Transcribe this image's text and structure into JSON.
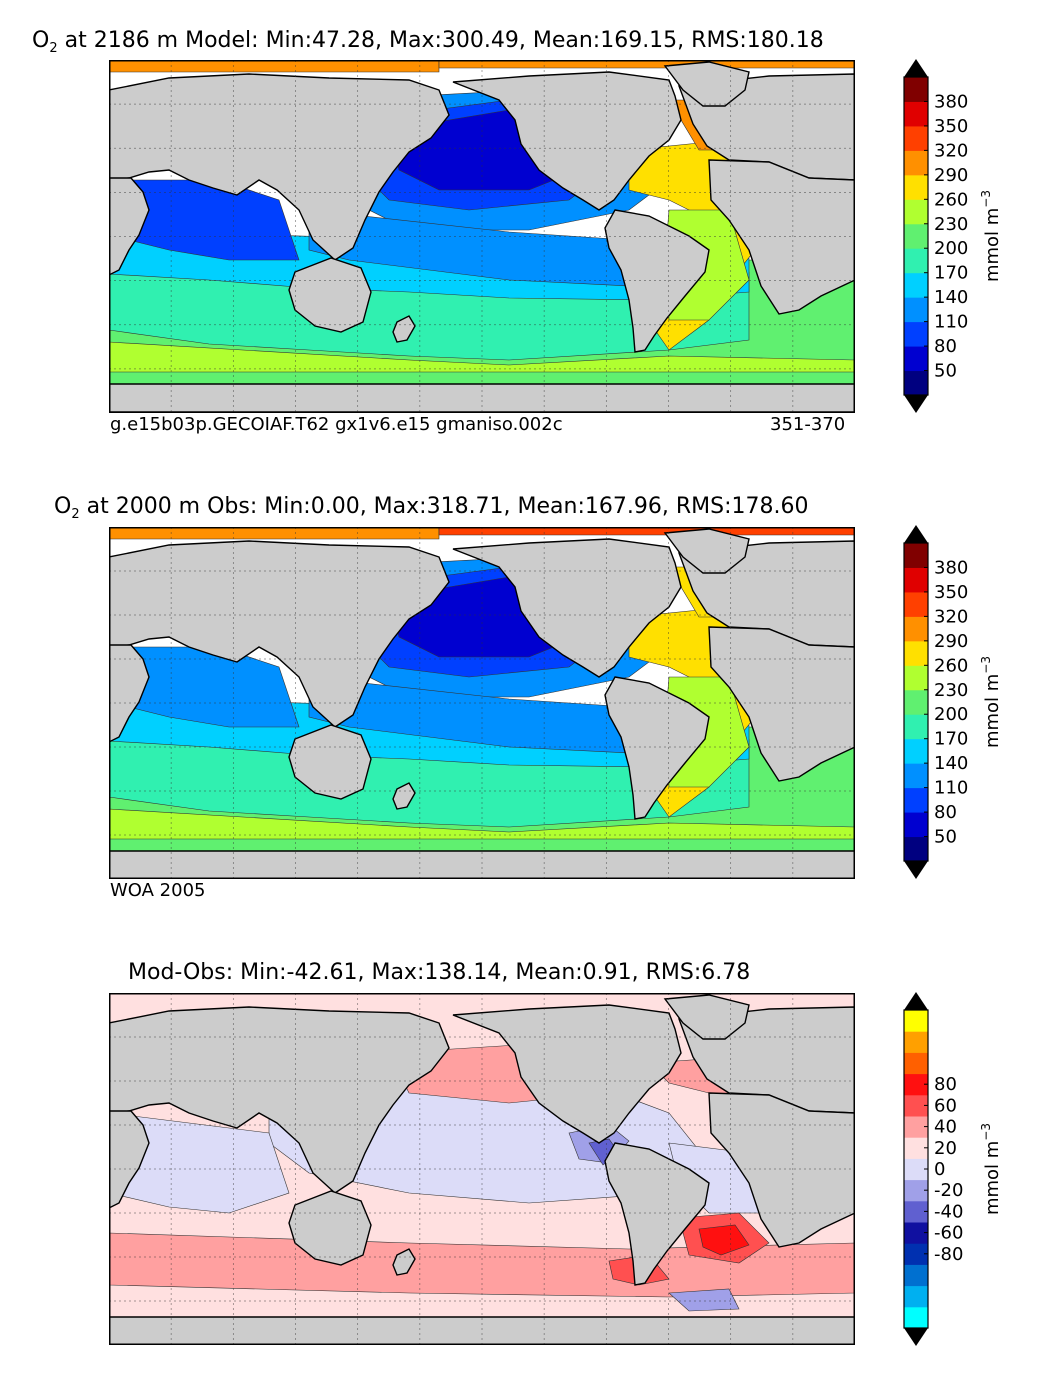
{
  "chart_data": [
    {
      "type": "heatmap",
      "title_prefix": "O",
      "title_sub": "2",
      "title_rest": " at 2186 m Model: Min:47.28, Max:300.49, Mean:169.15, RMS:180.18",
      "note_left": "g.e15b03p.GECOIAF.T62 gx1v6.e15 gmaniso.002c",
      "note_right": "351-370",
      "colorbar": {
        "units": "mmol m",
        "units_sup": "−3",
        "ticks": [
          "380",
          "350",
          "320",
          "290",
          "260",
          "230",
          "200",
          "170",
          "140",
          "110",
          "80",
          "50"
        ],
        "colors": [
          "#000080",
          "#0000d0",
          "#0040ff",
          "#0090ff",
          "#00d0ff",
          "#30f0b0",
          "#60f070",
          "#b0ff30",
          "#ffe000",
          "#ff9000",
          "#ff4000",
          "#e00000",
          "#800000"
        ]
      },
      "colors": {
        "land": "#cccccc",
        "missing": "#ffffff",
        "coast": "#000000"
      }
    },
    {
      "type": "heatmap",
      "title_prefix": "O",
      "title_sub": "2",
      "title_rest": " at 2000 m Obs: Min:0.00, Max:318.71, Mean:167.96, RMS:178.60",
      "note_left": "WOA 2005",
      "note_right": "",
      "colorbar": {
        "units": "mmol m",
        "units_sup": "−3",
        "ticks": [
          "380",
          "350",
          "320",
          "290",
          "260",
          "230",
          "200",
          "170",
          "140",
          "110",
          "80",
          "50"
        ],
        "colors": [
          "#000080",
          "#0000d0",
          "#0040ff",
          "#0090ff",
          "#00d0ff",
          "#30f0b0",
          "#60f070",
          "#b0ff30",
          "#ffe000",
          "#ff9000",
          "#ff4000",
          "#e00000",
          "#800000"
        ]
      },
      "colors": {
        "land": "#cccccc",
        "missing": "#ffffff",
        "coast": "#000000"
      }
    },
    {
      "type": "heatmap",
      "title_prefix": "",
      "title_sub": "",
      "title_rest": "Mod-Obs: Min:-42.61, Max:138.14, Mean:0.91, RMS:6.78",
      "note_left": "",
      "note_right": "",
      "colorbar": {
        "units": "mmol m",
        "units_sup": "−3",
        "ticks": [
          "80",
          "60",
          "40",
          "20",
          "0",
          "-20",
          "-40",
          "-60",
          "-80"
        ],
        "colors": [
          "#00ffff",
          "#00b0f0",
          "#0070d0",
          "#0030b0",
          "#1010a0",
          "#6060d0",
          "#a0a0e8",
          "#dcdcf8",
          "#ffe0e0",
          "#ffa0a0",
          "#ff5050",
          "#ff1010",
          "#ff6000",
          "#ffa000",
          "#ffff00"
        ]
      },
      "colors": {
        "land": "#cccccc",
        "missing": "#ffffff",
        "coast": "#000000"
      }
    }
  ]
}
